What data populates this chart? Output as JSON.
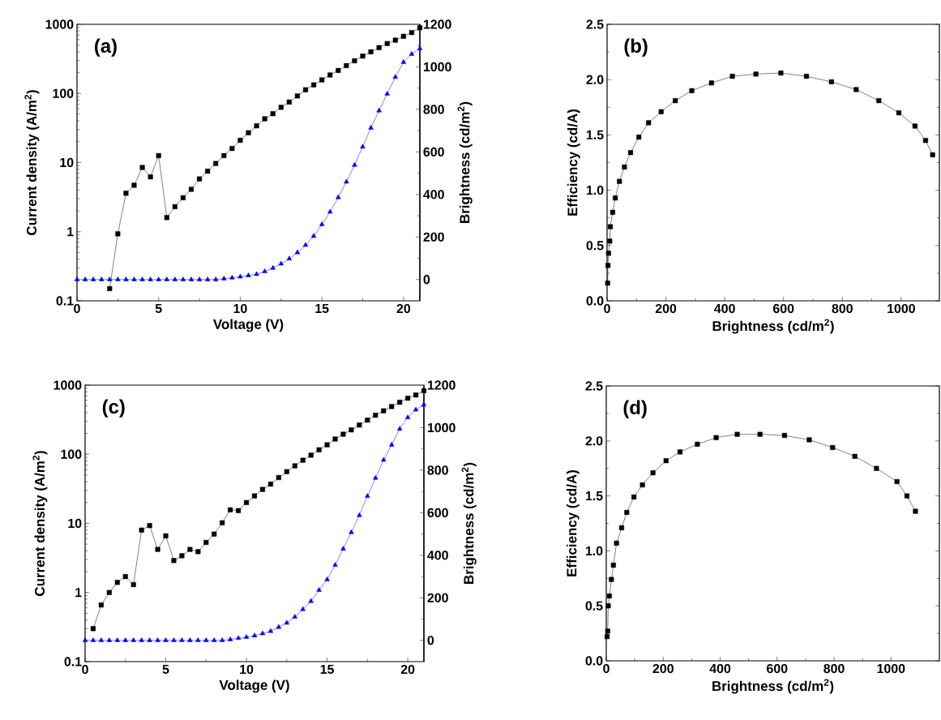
{
  "chart_data": [
    {
      "type": "line",
      "xlabel": "Voltage (V)",
      "ylabel": "Current density (A/m$^{2}$)",
      "y2label": "Brightness (cd/m$^{2}$)",
      "annotations": [
        "(a)"
      ],
      "log": "y",
      "xlim": [
        0,
        21
      ],
      "xticks": [
        0,
        5,
        10,
        15,
        20
      ],
      "ylim": [
        0.1,
        1000
      ],
      "yticks": [
        0.1,
        1,
        10,
        100,
        1000
      ],
      "y2lim": [
        -100,
        1200
      ],
      "y2ticks": [
        0,
        200,
        400,
        600,
        800,
        1000,
        1200
      ],
      "series": [
        {
          "color": "#000000",
          "marker": "square",
          "x": [
            2,
            2.5,
            3,
            3.5,
            4,
            4.5,
            5,
            5.5,
            6,
            6.5,
            7,
            7.5,
            8,
            8.5,
            9,
            9.5,
            10,
            10.5,
            11,
            11.5,
            12,
            12.5,
            13,
            13.5,
            14,
            14.5,
            15,
            15.5,
            16,
            16.5,
            17,
            17.5,
            18,
            18.5,
            19,
            19.5,
            20,
            20.5,
            21
          ],
          "values": [
            0.15,
            0.93,
            3.6,
            4.7,
            8.5,
            6.2,
            12.6,
            1.6,
            2.3,
            3.1,
            4.1,
            5.8,
            7.5,
            9.7,
            12.6,
            16,
            21,
            27,
            34,
            43,
            51,
            63,
            75,
            92,
            113,
            133,
            157,
            185,
            215,
            253,
            297,
            347,
            400,
            460,
            527,
            590,
            670,
            760,
            890
          ]
        },
        {
          "color": "#0000ff",
          "marker": "triangle",
          "axis": "y2",
          "x": [
            0,
            0.5,
            1,
            1.5,
            2,
            2.5,
            3,
            3.5,
            4,
            4.5,
            5,
            5.5,
            6,
            6.5,
            7,
            7.5,
            8,
            8.5,
            9,
            9.5,
            10,
            10.5,
            11,
            11.5,
            12,
            12.5,
            13,
            13.5,
            14,
            14.5,
            15,
            15.5,
            16,
            16.5,
            17,
            17.5,
            18,
            18.5,
            19,
            19.5,
            20,
            20.5,
            21
          ],
          "values": [
            0,
            0,
            0,
            0,
            0,
            0,
            0,
            0,
            0,
            0,
            0,
            0,
            0,
            0,
            0,
            0,
            0,
            0,
            4,
            8,
            13,
            19,
            25,
            38,
            54,
            74,
            98,
            127,
            162,
            204,
            259,
            318,
            386,
            459,
            538,
            624,
            713,
            794,
            873,
            952,
            1022,
            1060,
            1086
          ]
        }
      ]
    },
    {
      "type": "line",
      "xlabel": "Brightness (cd/m$^{2}$)",
      "ylabel": "Efficiency (cd/A)",
      "annotations": [
        "(b)"
      ],
      "xlim": [
        0,
        1130
      ],
      "xticks": [
        0,
        200,
        400,
        600,
        800,
        1000
      ],
      "ylim": [
        0,
        2.5
      ],
      "yticks": [
        {
          "value": 0,
          "label": "0.0"
        },
        0.5,
        {
          "value": 1,
          "label": "1.0"
        },
        1.5,
        {
          "value": 2,
          "label": "2.0"
        },
        2.5
      ],
      "series": [
        {
          "color": "#000000",
          "marker": "square",
          "x": [
            2,
            3,
            5,
            9,
            11,
            19,
            28,
            42,
            59,
            80,
            108,
            141,
            184,
            232,
            288,
            355,
            426,
            506,
            591,
            678,
            763,
            847,
            924,
            992,
            1047,
            1083,
            1107
          ],
          "values": [
            0.16,
            0.32,
            0.43,
            0.54,
            0.67,
            0.8,
            0.93,
            1.08,
            1.21,
            1.34,
            1.48,
            1.61,
            1.71,
            1.81,
            1.9,
            1.97,
            2.03,
            2.05,
            2.06,
            2.03,
            1.98,
            1.91,
            1.81,
            1.7,
            1.58,
            1.45,
            1.32
          ]
        }
      ]
    },
    {
      "type": "line",
      "xlabel": "Voltage (V)",
      "ylabel": "Current density (A/m$^{2}$)",
      "y2label": "Brightness (cd/m$^{2}$)",
      "annotations": [
        "(c)"
      ],
      "log": "y",
      "xlim": [
        0,
        21
      ],
      "xticks": [
        0,
        5,
        10,
        15,
        20
      ],
      "ylim": [
        0.1,
        1000
      ],
      "yticks": [
        0.1,
        1,
        10,
        100,
        1000
      ],
      "y2lim": [
        -100,
        1200
      ],
      "y2ticks": [
        0,
        200,
        400,
        600,
        800,
        1000,
        1200
      ],
      "series": [
        {
          "color": "#000000",
          "marker": "square",
          "x": [
            0.5,
            1,
            1.5,
            2,
            2.5,
            3,
            3.5,
            4,
            4.5,
            5,
            5.5,
            6,
            6.5,
            7,
            7.5,
            8,
            8.5,
            9,
            9.5,
            10,
            10.5,
            11,
            11.5,
            12,
            12.5,
            13,
            13.5,
            14,
            14.5,
            15,
            15.5,
            16,
            16.5,
            17,
            17.5,
            18,
            18.5,
            19,
            19.5,
            20,
            20.5,
            21
          ],
          "values": [
            0.3,
            0.66,
            1.0,
            1.4,
            1.7,
            1.3,
            8.0,
            9.3,
            4.2,
            6.6,
            2.9,
            3.4,
            4.2,
            3.9,
            5.3,
            7.0,
            10.2,
            15.7,
            15.3,
            20,
            25,
            31,
            37,
            46,
            56,
            68,
            82,
            97,
            116,
            137,
            166,
            195,
            225,
            265,
            312,
            367,
            425,
            490,
            565,
            647,
            720,
            830
          ]
        },
        {
          "color": "#0000ff",
          "marker": "triangle",
          "axis": "y2",
          "x": [
            0,
            0.5,
            1,
            1.5,
            2,
            2.5,
            3,
            3.5,
            4,
            4.5,
            5,
            5.5,
            6,
            6.5,
            7,
            7.5,
            8,
            8.5,
            9,
            9.5,
            10,
            10.5,
            11,
            11.5,
            12,
            12.5,
            13,
            13.5,
            14,
            14.5,
            15,
            15.5,
            16,
            16.5,
            17,
            17.5,
            18,
            18.5,
            19,
            19.5,
            20,
            20.5,
            21
          ],
          "values": [
            0,
            0,
            0,
            0,
            0,
            0,
            0,
            0,
            0,
            0,
            0,
            0,
            0,
            0,
            0,
            0,
            0,
            0,
            4,
            10,
            15,
            22,
            32,
            43,
            62,
            82,
            110,
            146,
            184,
            236,
            286,
            354,
            430,
            508,
            588,
            678,
            763,
            848,
            919,
            994,
            1048,
            1084,
            1108
          ]
        }
      ]
    },
    {
      "type": "line",
      "xlabel": "Brightness (cd/m$^{2}$)",
      "ylabel": "Efficiency (cd/A)",
      "annotations": [
        "(d)"
      ],
      "xlim": [
        0,
        1170
      ],
      "xticks": [
        0,
        200,
        400,
        600,
        800,
        1000
      ],
      "ylim": [
        0,
        2.5
      ],
      "yticks": [
        {
          "value": 0,
          "label": "0.0"
        },
        0.5,
        {
          "value": 1,
          "label": "1.0"
        },
        1.5,
        {
          "value": 2,
          "label": "2.0"
        },
        2.5
      ],
      "series": [
        {
          "color": "#000000",
          "marker": "square",
          "x": [
            3,
            5,
            7,
            11,
            18,
            25,
            36,
            54,
            72,
            97,
            127,
            164,
            210,
            259,
            320,
            386,
            460,
            540,
            626,
            713,
            795,
            873,
            949,
            1021,
            1056,
            1086
          ],
          "values": [
            0.22,
            0.27,
            0.5,
            0.59,
            0.74,
            0.87,
            1.07,
            1.21,
            1.35,
            1.49,
            1.6,
            1.71,
            1.82,
            1.9,
            1.97,
            2.03,
            2.06,
            2.06,
            2.05,
            2.01,
            1.94,
            1.86,
            1.75,
            1.63,
            1.5,
            1.36
          ]
        }
      ]
    }
  ]
}
